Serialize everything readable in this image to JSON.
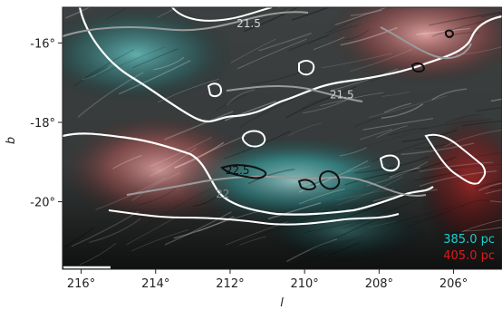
{
  "chart_data": {
    "type": "heatmap",
    "xlabel": "l",
    "ylabel": "b",
    "xlim": [
      216.5,
      204.7
    ],
    "ylim": [
      -21.7,
      -15.1
    ],
    "xticks": [
      216,
      214,
      212,
      210,
      208,
      206
    ],
    "xtick_labels": [
      "216°",
      "214°",
      "212°",
      "210°",
      "208°",
      "206°"
    ],
    "yticks": [
      -16,
      -18,
      -20
    ],
    "ytick_labels": [
      "-16°",
      "-18°",
      "-20°"
    ],
    "legend": [
      {
        "label": "385.0 pc",
        "color": "#17d0d0"
      },
      {
        "label": "405.0 pc",
        "color": "#e01a1a"
      }
    ],
    "contour_labels": [
      {
        "text": "21.5",
        "l": 211.5,
        "b": -15.6,
        "color": "#d8d8d8"
      },
      {
        "text": "21.5",
        "l": 209.0,
        "b": -17.4,
        "color": "#cfcfcf"
      },
      {
        "text": "22.5",
        "l": 211.8,
        "b": -19.3,
        "color": "#111111"
      },
      {
        "text": "22",
        "l": 212.2,
        "b": -19.9,
        "color": "#888888"
      }
    ],
    "colors": {
      "cyan": "#17d0d0",
      "red": "#e01a1a",
      "background": "#2a2a2a"
    }
  }
}
